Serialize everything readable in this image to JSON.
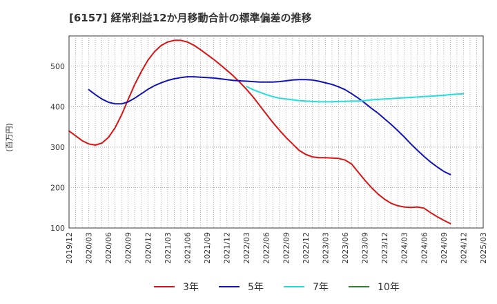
{
  "chart_data": {
    "type": "line",
    "title": "[6157]  経常利益12か月移動合計の標準偏差の推移",
    "ylabel": "(百万円)",
    "xlabel": "",
    "ylim": [
      100,
      575
    ],
    "y_ticks": [
      100,
      200,
      300,
      400,
      500
    ],
    "x_tick_labels": [
      "2019/12",
      "2020/03",
      "2020/06",
      "2020/09",
      "2020/12",
      "2021/03",
      "2021/06",
      "2021/09",
      "2021/12",
      "2022/03",
      "2022/06",
      "2022/09",
      "2022/12",
      "2023/03",
      "2023/06",
      "2023/09",
      "2023/12",
      "2024/03",
      "2024/06",
      "2024/09",
      "2024/12",
      "2025/03"
    ],
    "grid": true,
    "legend_position": "bottom",
    "series": [
      {
        "name": "3年",
        "color": "#dd1111",
        "points": [
          [
            "2019/12",
            340
          ],
          [
            "2020/01",
            328
          ],
          [
            "2020/02",
            316
          ],
          [
            "2020/03",
            308
          ],
          [
            "2020/04",
            305
          ],
          [
            "2020/05",
            310
          ],
          [
            "2020/06",
            324
          ],
          [
            "2020/07",
            348
          ],
          [
            "2020/08",
            380
          ],
          [
            "2020/09",
            418
          ],
          [
            "2020/10",
            455
          ],
          [
            "2020/11",
            487
          ],
          [
            "2020/12",
            515
          ],
          [
            "2021/01",
            536
          ],
          [
            "2021/02",
            551
          ],
          [
            "2021/03",
            560
          ],
          [
            "2021/04",
            564
          ],
          [
            "2021/05",
            564
          ],
          [
            "2021/06",
            560
          ],
          [
            "2021/07",
            552
          ],
          [
            "2021/08",
            541
          ],
          [
            "2021/09",
            529
          ],
          [
            "2021/10",
            517
          ],
          [
            "2021/11",
            504
          ],
          [
            "2021/12",
            490
          ],
          [
            "2022/01",
            476
          ],
          [
            "2022/02",
            460
          ],
          [
            "2022/03",
            443
          ],
          [
            "2022/04",
            424
          ],
          [
            "2022/05",
            403
          ],
          [
            "2022/06",
            382
          ],
          [
            "2022/07",
            361
          ],
          [
            "2022/08",
            342
          ],
          [
            "2022/09",
            324
          ],
          [
            "2022/10",
            308
          ],
          [
            "2022/11",
            292
          ],
          [
            "2022/12",
            282
          ],
          [
            "2023/01",
            276
          ],
          [
            "2023/02",
            274
          ],
          [
            "2023/03",
            274
          ],
          [
            "2023/04",
            273
          ],
          [
            "2023/05",
            272
          ],
          [
            "2023/06",
            268
          ],
          [
            "2023/07",
            258
          ],
          [
            "2023/08",
            238
          ],
          [
            "2023/09",
            218
          ],
          [
            "2023/10",
            200
          ],
          [
            "2023/11",
            184
          ],
          [
            "2023/12",
            171
          ],
          [
            "2024/01",
            161
          ],
          [
            "2024/02",
            155
          ],
          [
            "2024/03",
            152
          ],
          [
            "2024/04",
            151
          ],
          [
            "2024/05",
            152
          ],
          [
            "2024/06",
            149
          ],
          [
            "2024/07",
            138
          ],
          [
            "2024/08",
            128
          ],
          [
            "2024/09",
            119
          ],
          [
            "2024/10",
            111
          ]
        ]
      },
      {
        "name": "5年",
        "color": "#1111bb",
        "points": [
          [
            "2020/03",
            442
          ],
          [
            "2020/04",
            430
          ],
          [
            "2020/05",
            419
          ],
          [
            "2020/06",
            411
          ],
          [
            "2020/07",
            407
          ],
          [
            "2020/08",
            407
          ],
          [
            "2020/09",
            412
          ],
          [
            "2020/10",
            421
          ],
          [
            "2020/11",
            432
          ],
          [
            "2020/12",
            443
          ],
          [
            "2021/01",
            452
          ],
          [
            "2021/02",
            459
          ],
          [
            "2021/03",
            465
          ],
          [
            "2021/04",
            469
          ],
          [
            "2021/05",
            472
          ],
          [
            "2021/06",
            474
          ],
          [
            "2021/07",
            474
          ],
          [
            "2021/08",
            473
          ],
          [
            "2021/09",
            472
          ],
          [
            "2021/10",
            471
          ],
          [
            "2021/11",
            469
          ],
          [
            "2021/12",
            467
          ],
          [
            "2022/01",
            465
          ],
          [
            "2022/02",
            464
          ],
          [
            "2022/03",
            463
          ],
          [
            "2022/04",
            462
          ],
          [
            "2022/05",
            461
          ],
          [
            "2022/06",
            461
          ],
          [
            "2022/07",
            461
          ],
          [
            "2022/08",
            462
          ],
          [
            "2022/09",
            464
          ],
          [
            "2022/10",
            466
          ],
          [
            "2022/11",
            467
          ],
          [
            "2022/12",
            467
          ],
          [
            "2023/01",
            466
          ],
          [
            "2023/02",
            463
          ],
          [
            "2023/03",
            459
          ],
          [
            "2023/04",
            455
          ],
          [
            "2023/05",
            449
          ],
          [
            "2023/06",
            442
          ],
          [
            "2023/07",
            432
          ],
          [
            "2023/08",
            421
          ],
          [
            "2023/09",
            409
          ],
          [
            "2023/10",
            396
          ],
          [
            "2023/11",
            384
          ],
          [
            "2023/12",
            370
          ],
          [
            "2024/01",
            356
          ],
          [
            "2024/02",
            341
          ],
          [
            "2024/03",
            325
          ],
          [
            "2024/04",
            308
          ],
          [
            "2024/05",
            292
          ],
          [
            "2024/06",
            277
          ],
          [
            "2024/07",
            263
          ],
          [
            "2024/08",
            251
          ],
          [
            "2024/09",
            240
          ],
          [
            "2024/10",
            232
          ]
        ]
      },
      {
        "name": "7年",
        "color": "#22dddd",
        "points": [
          [
            "2022/03",
            450
          ],
          [
            "2022/04",
            442
          ],
          [
            "2022/05",
            436
          ],
          [
            "2022/06",
            430
          ],
          [
            "2022/07",
            425
          ],
          [
            "2022/08",
            421
          ],
          [
            "2022/09",
            419
          ],
          [
            "2022/10",
            417
          ],
          [
            "2022/11",
            415
          ],
          [
            "2022/12",
            414
          ],
          [
            "2023/01",
            413
          ],
          [
            "2023/02",
            412
          ],
          [
            "2023/03",
            412
          ],
          [
            "2023/04",
            412
          ],
          [
            "2023/05",
            413
          ],
          [
            "2023/06",
            413
          ],
          [
            "2023/07",
            414
          ],
          [
            "2023/08",
            414
          ],
          [
            "2023/09",
            415
          ],
          [
            "2023/10",
            417
          ],
          [
            "2023/11",
            418
          ],
          [
            "2023/12",
            419
          ],
          [
            "2024/01",
            420
          ],
          [
            "2024/02",
            421
          ],
          [
            "2024/03",
            422
          ],
          [
            "2024/04",
            423
          ],
          [
            "2024/05",
            424
          ],
          [
            "2024/06",
            425
          ],
          [
            "2024/07",
            426
          ],
          [
            "2024/08",
            427
          ],
          [
            "2024/09",
            428
          ],
          [
            "2024/10",
            430
          ],
          [
            "2024/11",
            431
          ],
          [
            "2024/12",
            432
          ]
        ]
      },
      {
        "name": "10年",
        "color": "#228822",
        "points": []
      }
    ]
  }
}
